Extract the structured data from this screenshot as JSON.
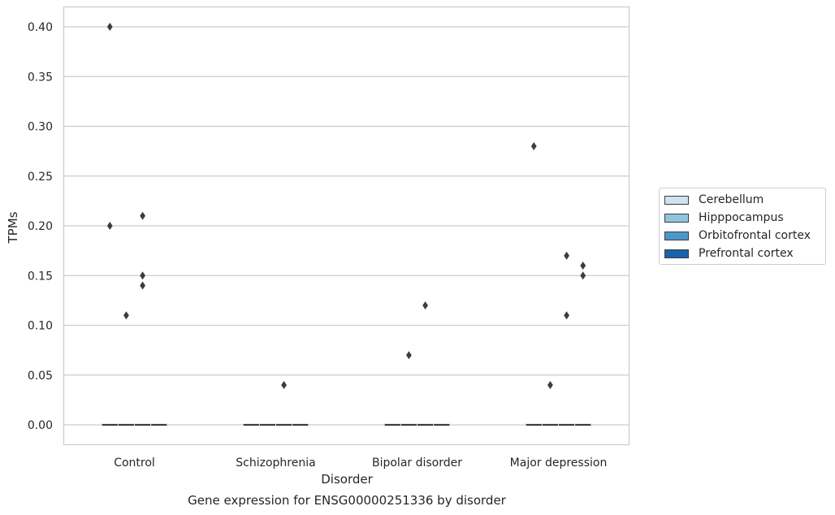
{
  "chart_data": {
    "type": "box",
    "title": "",
    "caption": "Gene expression for ENSG00000251336 by disorder",
    "xlabel": "Disorder",
    "ylabel": "TPMs",
    "ylim": [
      -0.02,
      0.42
    ],
    "yticks": [
      "0.00",
      "0.05",
      "0.10",
      "0.15",
      "0.20",
      "0.25",
      "0.30",
      "0.35",
      "0.40"
    ],
    "grid": true,
    "legend_position": "right",
    "categories": [
      "Control",
      "Schizophrenia",
      "Bipolar disorder",
      "Major depression"
    ],
    "series": [
      {
        "name": "Cerebellum",
        "color": "#cfe1f2",
        "median": [
          0,
          0,
          0,
          0
        ],
        "outliers": [
          [
            0.4,
            0.2
          ],
          [],
          [],
          [
            0.28
          ]
        ]
      },
      {
        "name": "Hipppocampus",
        "color": "#93c4de",
        "median": [
          0,
          0,
          0,
          0
        ],
        "outliers": [
          [
            0.11
          ],
          [],
          [
            0.07
          ],
          [
            0.04
          ]
        ]
      },
      {
        "name": "Orbitofrontal cortex",
        "color": "#4a98c9",
        "median": [
          0,
          0,
          0,
          0
        ],
        "outliers": [
          [
            0.21,
            0.15,
            0.14
          ],
          [
            0.04
          ],
          [
            0.12
          ],
          [
            0.17,
            0.11
          ]
        ]
      },
      {
        "name": "Prefrontal cortex",
        "color": "#1764ab",
        "median": [
          0,
          0,
          0,
          0
        ],
        "outliers": [
          [],
          [],
          [],
          [
            0.16,
            0.15
          ]
        ]
      }
    ]
  }
}
